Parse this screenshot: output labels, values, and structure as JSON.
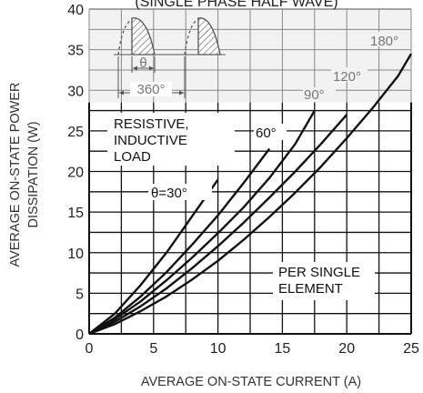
{
  "chart_data": {
    "type": "line",
    "title": "(SINGLE PHASE HALF WAVE)",
    "xlabel": "AVERAGE ON-STATE CURRENT (A)",
    "ylabel_line1": "AVERAGE ON-STATE POWER",
    "ylabel_line2": "DISSIPATION (W)",
    "xlim": [
      0,
      25
    ],
    "ylim": [
      0,
      40
    ],
    "x_ticks": [
      "0",
      "5",
      "10",
      "15",
      "20",
      "25"
    ],
    "y_ticks": [
      "0",
      "5",
      "10",
      "15",
      "20",
      "25",
      "30",
      "35",
      "40"
    ],
    "grid": true,
    "series": [
      {
        "name": "θ=30°",
        "x": [
          0,
          2,
          4,
          6,
          8,
          10
        ],
        "y": [
          0,
          2.5,
          6.0,
          10.0,
          14.5,
          19.0
        ]
      },
      {
        "name": "60°",
        "x": [
          0,
          2,
          4,
          6,
          8,
          10,
          12,
          14
        ],
        "y": [
          0,
          2.0,
          4.6,
          7.6,
          11.0,
          14.6,
          18.6,
          22.8
        ]
      },
      {
        "name": "90°",
        "x": [
          0,
          2,
          4,
          6,
          8,
          10,
          12,
          14,
          16,
          17.5
        ],
        "y": [
          0,
          1.8,
          4.0,
          6.6,
          9.4,
          12.4,
          15.6,
          19.2,
          23.4,
          27.5
        ]
      },
      {
        "name": "120°",
        "x": [
          0,
          2,
          4,
          6,
          8,
          10,
          12,
          14,
          16,
          18,
          20
        ],
        "y": [
          0,
          1.5,
          3.4,
          5.6,
          8.1,
          10.8,
          13.7,
          16.8,
          20.0,
          23.4,
          27.0
        ]
      },
      {
        "name": "180°",
        "x": [
          0,
          2,
          4,
          6,
          8,
          10,
          12,
          14,
          16,
          18,
          20,
          22,
          24,
          25
        ],
        "y": [
          0,
          1.2,
          2.8,
          4.6,
          6.7,
          9.0,
          11.6,
          14.4,
          17.4,
          20.6,
          24.1,
          27.8,
          31.8,
          34.5
        ]
      }
    ],
    "annotations": {
      "load_line1": "RESISTIVE,",
      "load_line2": "INDUCTIVE",
      "load_line3": "LOAD",
      "per_line1": "PER SINGLE",
      "per_line2": "ELEMENT",
      "theta": "θ",
      "period": "360°"
    },
    "colors": {
      "curve": "#111111",
      "curve_upper": "#888888",
      "grid": "#111111",
      "grid_upper": "#888888",
      "shade": "#f2f2f2"
    }
  }
}
